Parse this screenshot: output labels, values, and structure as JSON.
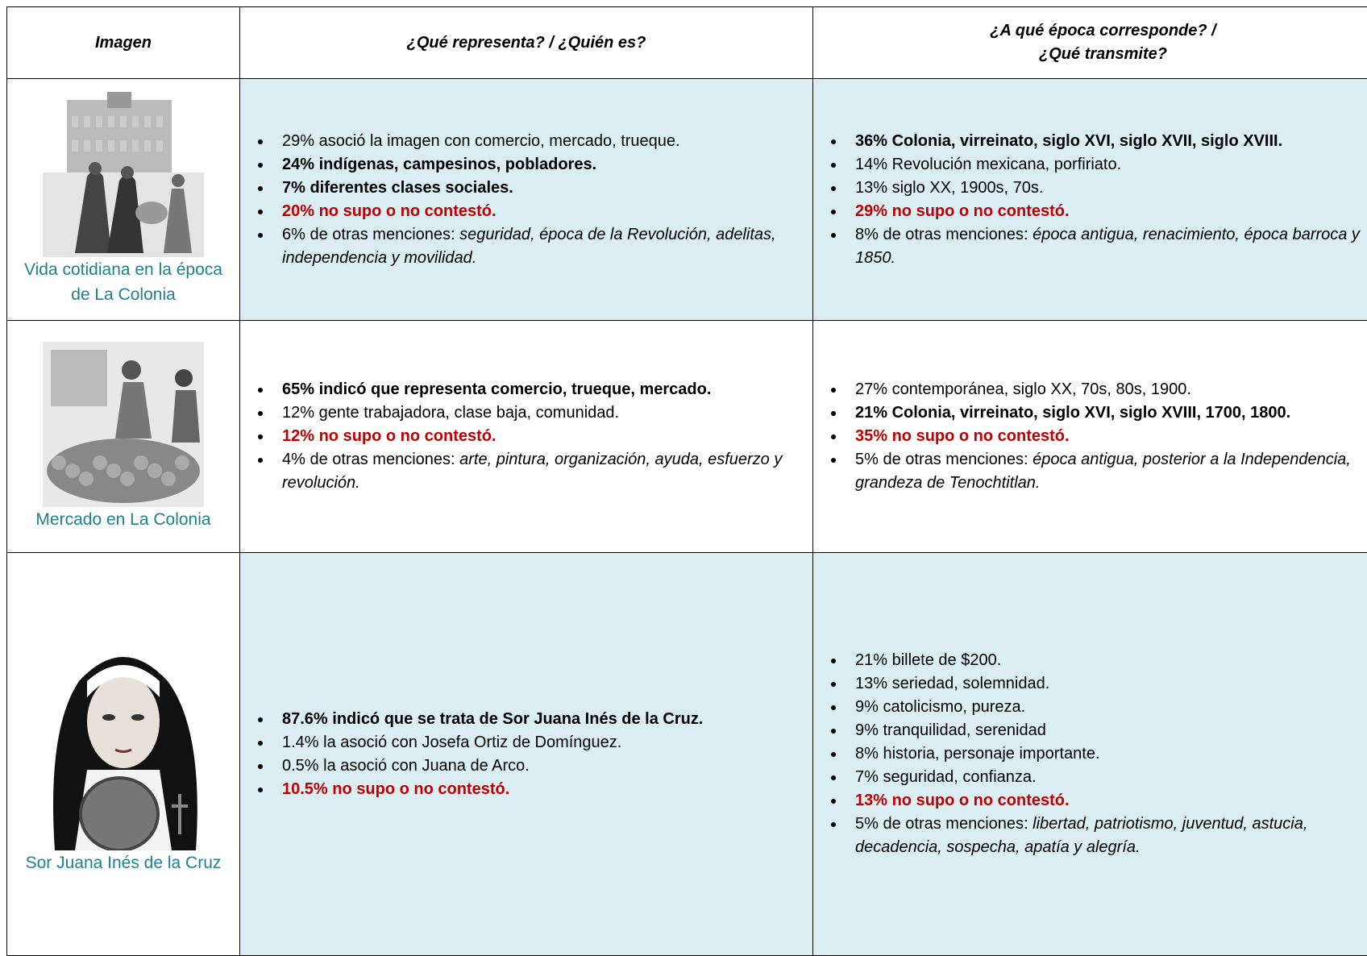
{
  "table": {
    "headers": {
      "image": "Imagen",
      "meaning": "¿Qué representa? / ¿Quién es?",
      "epoch": [
        "¿A qué época corresponde? /",
        "¿Qué transmite?"
      ]
    },
    "rows": [
      {
        "caption": "Vida cotidiana en la época de La Colonia",
        "meaning": [
          {
            "text": "29% asoció la imagen con comercio, mercado, trueque.",
            "style": "plain"
          },
          {
            "text": "24% indígenas, campesinos, pobladores.",
            "style": "bold"
          },
          {
            "text": "7% diferentes clases sociales.",
            "style": "bold"
          },
          {
            "text": "20% no supo o no contestó.",
            "style": "red"
          },
          {
            "text": "6% de otras menciones: ",
            "style": "plain",
            "italic": "seguridad, época de la Revolución, adelitas, independencia y movilidad."
          }
        ],
        "epoch": [
          {
            "text": "36% Colonia, virreinato, siglo XVI, siglo XVII, siglo XVIII.",
            "style": "bold"
          },
          {
            "text": "14% Revolución mexicana, porfiriato.",
            "style": "plain"
          },
          {
            "text": "13% siglo XX, 1900s, 70s.",
            "style": "plain"
          },
          {
            "text": "29% no supo o no contestó.",
            "style": "red"
          },
          {
            "text": "8% de otras menciones: ",
            "style": "plain",
            "italic": "época antigua, renacimiento, época barroca y 1850."
          }
        ]
      },
      {
        "caption": "Mercado en La Colonia",
        "meaning": [
          {
            "text": "65% indicó que representa comercio, trueque, mercado.",
            "style": "bold"
          },
          {
            "text": "12% gente trabajadora, clase baja, comunidad.",
            "style": "plain"
          },
          {
            "text": "12% no supo o no contestó.",
            "style": "red"
          },
          {
            "text": "4% de otras menciones: ",
            "style": "plain",
            "italic": "arte, pintura, organización, ayuda, esfuerzo y revolución."
          }
        ],
        "epoch": [
          {
            "text": "27% contemporánea, siglo XX, 70s, 80s, 1900.",
            "style": "plain"
          },
          {
            "text": "21% Colonia, virreinato, siglo XVI, siglo XVIII, 1700, 1800.",
            "style": "bold"
          },
          {
            "text": "35% no supo o no contestó.",
            "style": "red"
          },
          {
            "text": "5% de otras menciones: ",
            "style": "plain",
            "italic": "época antigua, posterior a la Independencia, grandeza de Tenochtitlan."
          }
        ]
      },
      {
        "caption": "Sor Juana Inés de la Cruz",
        "meaning": [
          {
            "text": "87.6% indicó que se trata de Sor Juana Inés de la Cruz.",
            "style": "bold"
          },
          {
            "text": "1.4% la asoció con Josefa Ortiz de Domínguez.",
            "style": "plain"
          },
          {
            "text": "0.5% la asoció con Juana de Arco.",
            "style": "plain"
          },
          {
            "text": "10.5% no supo o no contestó.",
            "style": "red"
          }
        ],
        "epoch": [
          {
            "text": "21% billete de $200.",
            "style": "plain"
          },
          {
            "text": "13% seriedad, solemnidad.",
            "style": "plain"
          },
          {
            "text": "9% catolicismo, pureza.",
            "style": "plain"
          },
          {
            "text": "9% tranquilidad, serenidad",
            "style": "plain"
          },
          {
            "text": "8% historia, personaje importante.",
            "style": "plain"
          },
          {
            "text": "7% seguridad, confianza.",
            "style": "plain"
          },
          {
            "text": "13% no supo o no contestó.",
            "style": "red"
          },
          {
            "text": "5% de otras menciones: ",
            "style": "plain",
            "italic": "libertad, patriotismo, juventud, astucia, decadencia, sospecha, apatía y alegría."
          }
        ]
      }
    ]
  }
}
